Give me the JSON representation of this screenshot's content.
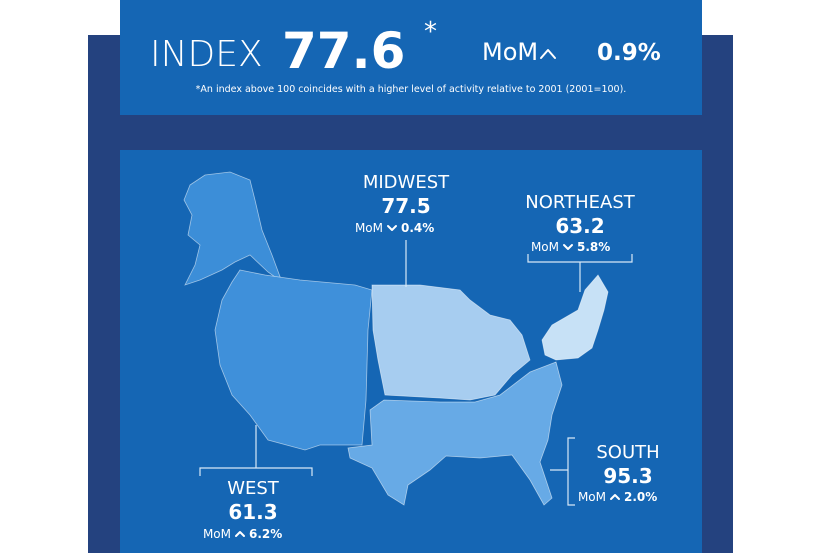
{
  "header": {
    "label": "INDEX",
    "value": 77.6,
    "asterisk": "*",
    "mom_label": "MoM",
    "mom_change": "0.9%",
    "footnote": "*An index above 100 coincides with a higher level of activity relative to 2001 (2001=100)."
  },
  "regions": [
    {
      "name": "MIDWEST",
      "index": 77.5,
      "mom_label": "MoM",
      "mom_change": "0.4%"
    },
    {
      "name": "NORTHEAST",
      "index": 63.2,
      "mom_label": "MoM",
      "mom_change": "5.8%"
    },
    {
      "name": "SOUTH",
      "index": 95.3,
      "mom_label": "MoM",
      "mom_change": "2.0%"
    },
    {
      "name": "WEST",
      "index": 61.3,
      "mom_label": "MoM",
      "mom_change": "6.2%"
    }
  ]
}
